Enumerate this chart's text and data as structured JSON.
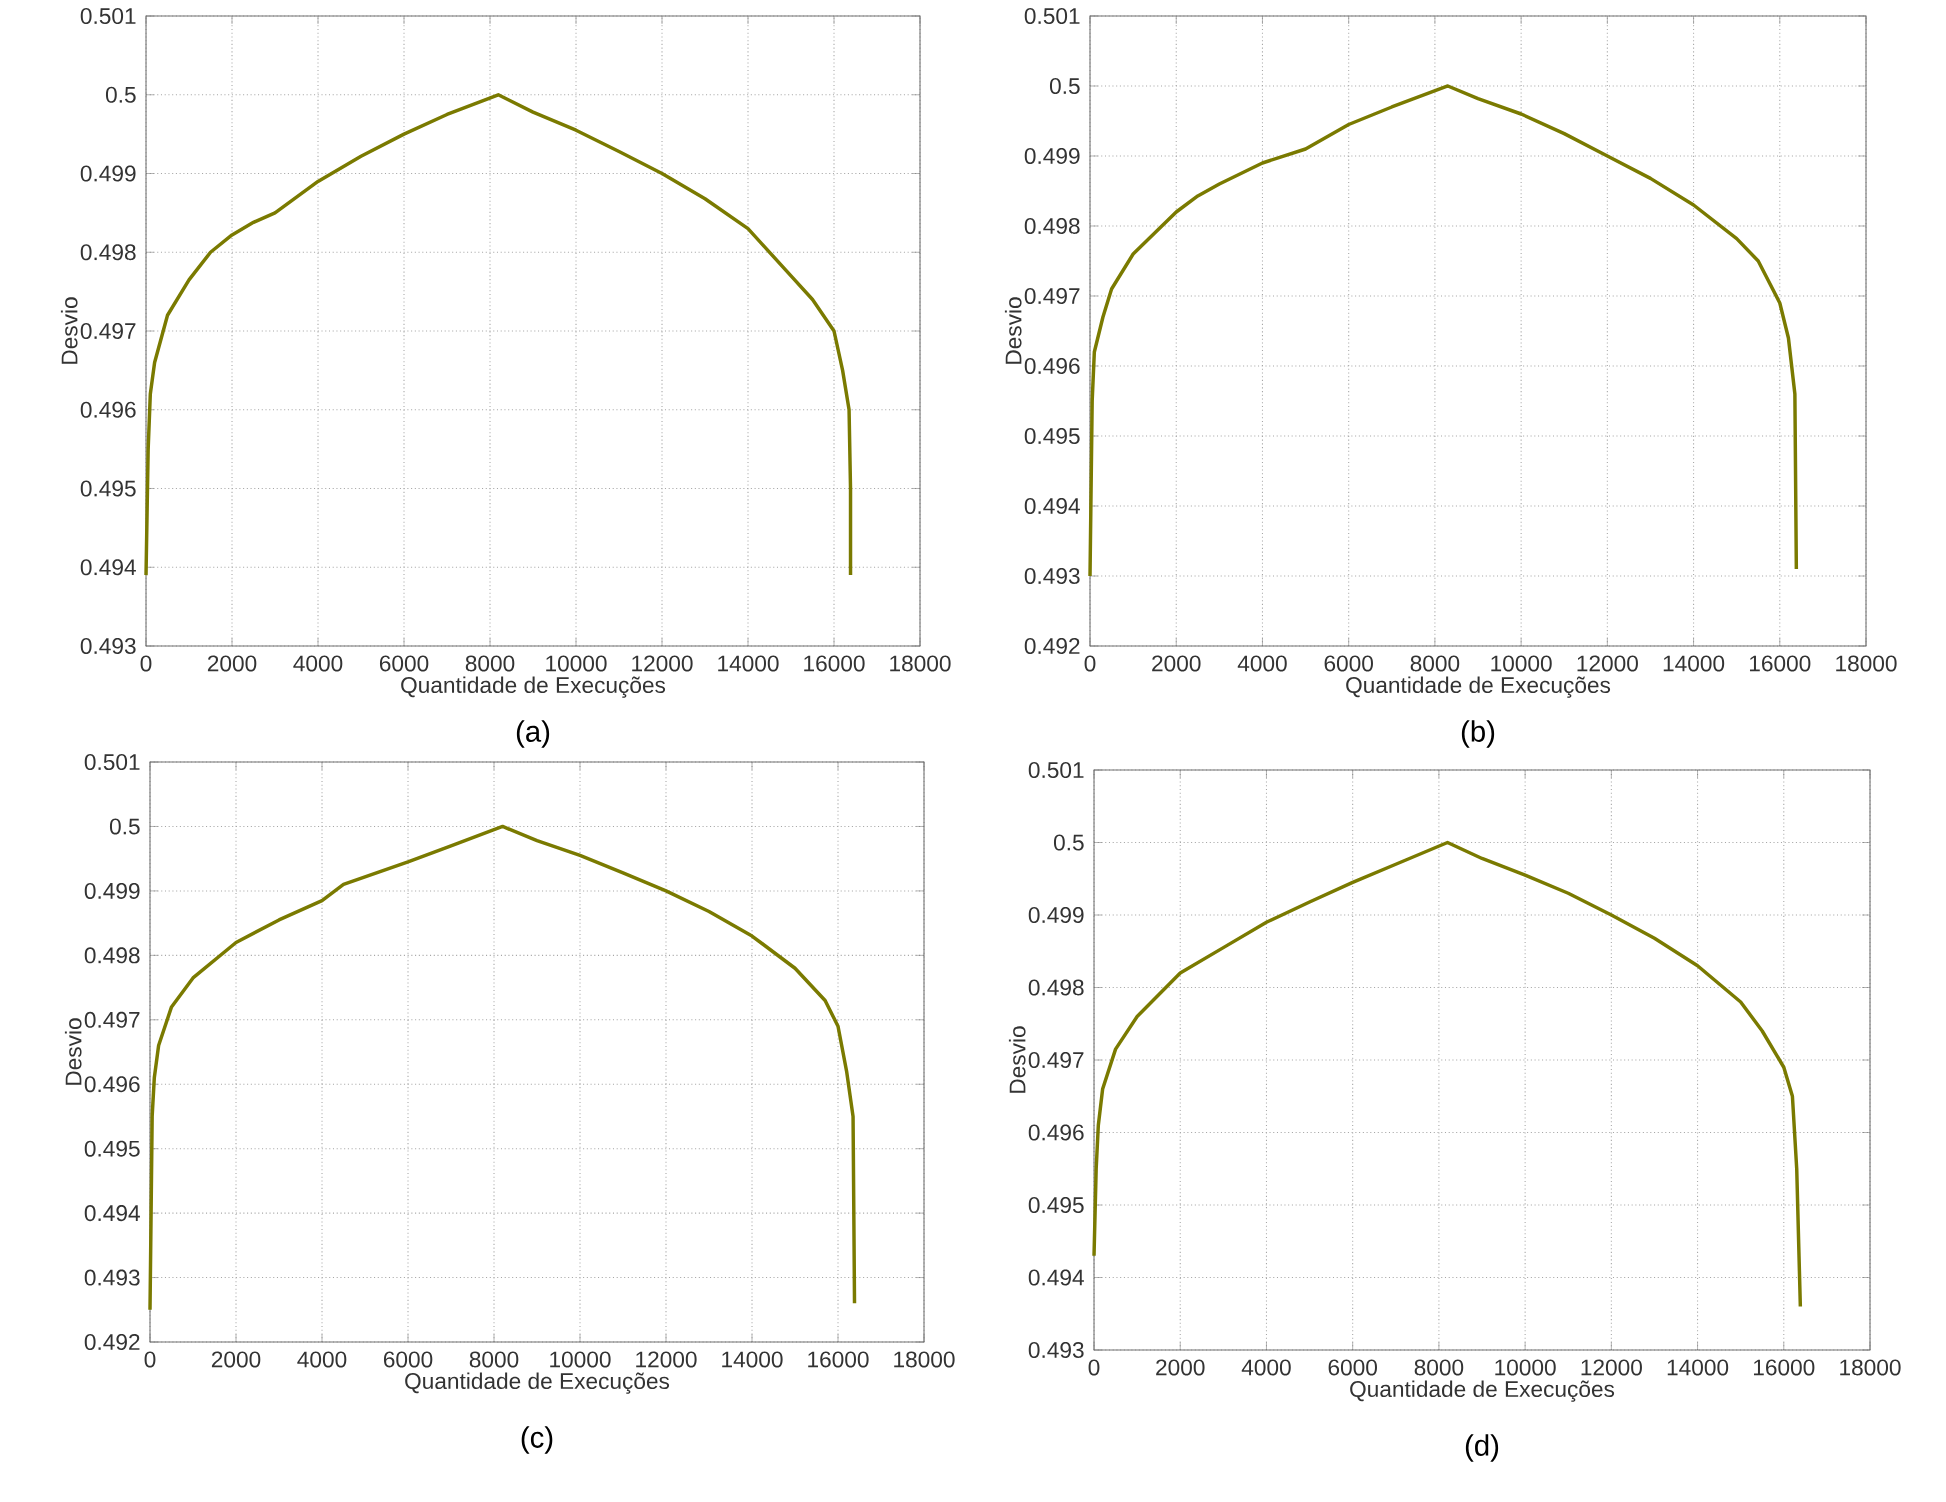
{
  "chart_data": [
    {
      "type": "line",
      "xlabel": "Quantidade de Execuções",
      "ylabel": "Desvio",
      "annotations": [
        "(a)"
      ],
      "xlim": [
        0,
        18000
      ],
      "ylim": [
        0.493,
        0.501
      ],
      "xticks": [
        0,
        2000,
        4000,
        6000,
        8000,
        10000,
        12000,
        14000,
        16000,
        18000
      ],
      "yticks": [
        0.493,
        0.494,
        0.495,
        0.496,
        0.497,
        0.498,
        0.499,
        0.5,
        0.501
      ],
      "grid": true,
      "line_style": "solid",
      "series": [
        {
          "color": "#7a7a00",
          "x": [
            0,
            50,
            100,
            200,
            500,
            1000,
            1500,
            2000,
            2500,
            3000,
            4000,
            5000,
            6000,
            7000,
            8192,
            9000,
            10000,
            11000,
            12000,
            13000,
            14000,
            15000,
            15500,
            16000,
            16200,
            16350,
            16384,
            16384
          ],
          "values": [
            0.4939,
            0.4955,
            0.4962,
            0.4966,
            0.4972,
            0.49765,
            0.498,
            0.49822,
            0.49838,
            0.4985,
            0.4989,
            0.49922,
            0.4995,
            0.49975,
            0.5,
            0.49978,
            0.49955,
            0.49928,
            0.499,
            0.49868,
            0.4983,
            0.4977,
            0.4974,
            0.497,
            0.4965,
            0.496,
            0.495,
            0.4939
          ]
        }
      ]
    },
    {
      "type": "line",
      "xlabel": "Quantidade de Execuções",
      "ylabel": "Desvio",
      "annotations": [
        "(b)"
      ],
      "xlim": [
        0,
        18000
      ],
      "ylim": [
        0.492,
        0.501
      ],
      "xticks": [
        0,
        2000,
        4000,
        6000,
        8000,
        10000,
        12000,
        14000,
        16000,
        18000
      ],
      "yticks": [
        0.492,
        0.493,
        0.494,
        0.495,
        0.496,
        0.497,
        0.498,
        0.499,
        0.5,
        0.501
      ],
      "grid": true,
      "line_style": "solid",
      "series": [
        {
          "color": "#7a7a00",
          "x": [
            0,
            50,
            100,
            300,
            500,
            1000,
            2000,
            2500,
            3000,
            4000,
            5000,
            6000,
            7000,
            8300,
            9000,
            10000,
            11000,
            12000,
            13000,
            14000,
            15000,
            15500,
            16000,
            16200,
            16350,
            16384
          ],
          "values": [
            0.493,
            0.4955,
            0.4962,
            0.4967,
            0.4971,
            0.4976,
            0.4982,
            0.49843,
            0.4986,
            0.4989,
            0.4991,
            0.49945,
            0.4997,
            0.5,
            0.49982,
            0.4996,
            0.49932,
            0.499,
            0.49868,
            0.4983,
            0.49782,
            0.4975,
            0.4969,
            0.4964,
            0.4956,
            0.4931
          ]
        }
      ]
    },
    {
      "type": "line",
      "xlabel": "Quantidade de Execuções",
      "ylabel": "Desvio",
      "annotations": [
        "(c)"
      ],
      "xlim": [
        0,
        18000
      ],
      "ylim": [
        0.492,
        0.501
      ],
      "xticks": [
        0,
        2000,
        4000,
        6000,
        8000,
        10000,
        12000,
        14000,
        16000,
        18000
      ],
      "yticks": [
        0.492,
        0.493,
        0.494,
        0.495,
        0.496,
        0.497,
        0.498,
        0.499,
        0.5,
        0.501
      ],
      "grid": true,
      "line_style": "solid",
      "series": [
        {
          "color": "#7a7a00",
          "x": [
            0,
            50,
            100,
            200,
            500,
            1000,
            2000,
            3000,
            4000,
            4500,
            6000,
            7000,
            8200,
            9000,
            10000,
            11000,
            12000,
            13000,
            14000,
            15000,
            15700,
            16000,
            16200,
            16350,
            16384
          ],
          "values": [
            0.4925,
            0.4955,
            0.4961,
            0.4966,
            0.4972,
            0.49765,
            0.4982,
            0.49855,
            0.49885,
            0.4991,
            0.49945,
            0.4997,
            0.5,
            0.49978,
            0.49955,
            0.49928,
            0.499,
            0.49868,
            0.4983,
            0.4978,
            0.4973,
            0.4969,
            0.4962,
            0.4955,
            0.4926
          ]
        }
      ]
    },
    {
      "type": "line",
      "xlabel": "Quantidade de Execuções",
      "ylabel": "Desvio",
      "annotations": [
        "(d)"
      ],
      "xlim": [
        0,
        18000
      ],
      "ylim": [
        0.493,
        0.501
      ],
      "xticks": [
        0,
        2000,
        4000,
        6000,
        8000,
        10000,
        12000,
        14000,
        16000,
        18000
      ],
      "yticks": [
        0.493,
        0.494,
        0.495,
        0.496,
        0.497,
        0.498,
        0.499,
        0.5,
        0.501
      ],
      "grid": true,
      "line_style": "solid",
      "series": [
        {
          "color": "#7a7a00",
          "x": [
            0,
            50,
            100,
            200,
            500,
            1000,
            2000,
            3000,
            4000,
            5000,
            6000,
            7000,
            8200,
            9000,
            10000,
            11000,
            12000,
            13000,
            14000,
            15000,
            15500,
            16000,
            16200,
            16300,
            16384
          ],
          "values": [
            0.4943,
            0.4955,
            0.4961,
            0.4966,
            0.49715,
            0.4976,
            0.4982,
            0.49855,
            0.4989,
            0.49918,
            0.49945,
            0.4997,
            0.5,
            0.49978,
            0.49955,
            0.4993,
            0.499,
            0.49868,
            0.4983,
            0.4978,
            0.4974,
            0.4969,
            0.4965,
            0.4955,
            0.4936
          ]
        }
      ]
    }
  ]
}
